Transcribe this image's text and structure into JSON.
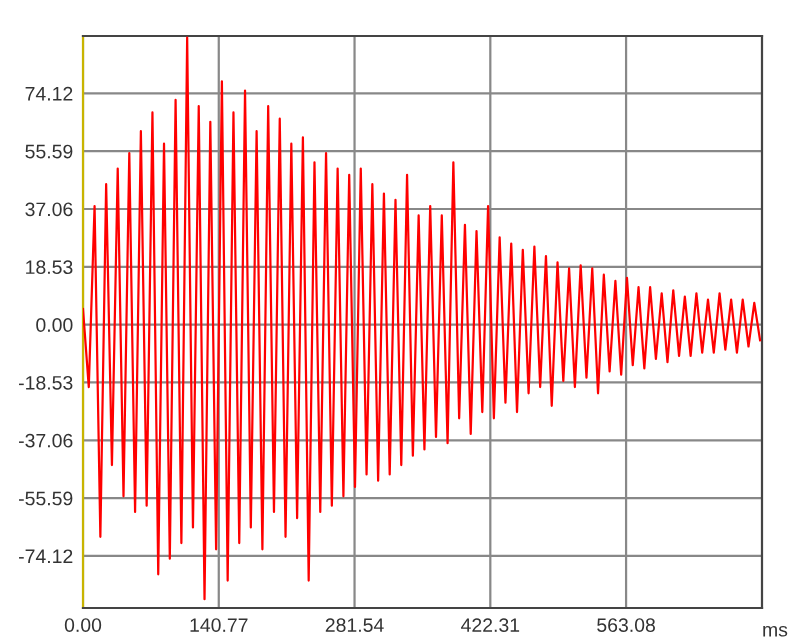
{
  "chart_data": {
    "type": "line",
    "xlabel": "ms",
    "x": [
      0,
      6,
      12,
      18,
      24,
      30,
      36,
      42,
      48,
      54,
      60,
      66,
      72,
      78,
      84,
      90,
      96,
      102,
      108,
      114,
      120,
      126,
      132,
      138,
      144,
      150,
      156,
      162,
      168,
      174,
      180,
      186,
      192,
      198,
      204,
      210,
      216,
      222,
      228,
      234,
      240,
      246,
      252,
      258,
      264,
      270,
      276,
      282,
      288,
      294,
      300,
      306,
      312,
      318,
      324,
      330,
      336,
      342,
      348,
      354,
      360,
      366,
      372,
      378,
      384,
      390,
      396,
      402,
      408,
      414,
      420,
      426,
      432,
      438,
      444,
      450,
      456,
      462,
      468,
      474,
      480,
      486,
      492,
      498,
      504,
      510,
      516,
      522,
      528,
      534,
      540,
      546,
      552,
      558,
      564,
      570,
      576,
      582,
      588,
      594,
      600,
      606,
      612,
      618,
      624,
      630,
      636,
      642,
      648,
      654,
      660,
      666,
      672,
      678,
      684,
      690,
      696,
      702
    ],
    "series": [
      {
        "color": "#ff0000",
        "values": [
          5,
          -20,
          38,
          -68,
          45,
          -45,
          50,
          -55,
          55,
          -60,
          62,
          -58,
          68,
          -80,
          58,
          -75,
          72,
          -70,
          92,
          -65,
          70,
          -88,
          65,
          -72,
          78,
          -82,
          68,
          -70,
          75,
          -65,
          62,
          -72,
          70,
          -60,
          66,
          -68,
          58,
          -62,
          60,
          -82,
          52,
          -60,
          55,
          -58,
          50,
          -55,
          48,
          -52,
          50,
          -48,
          45,
          -50,
          42,
          -48,
          40,
          -45,
          48,
          -42,
          35,
          -40,
          38,
          -36,
          35,
          -38,
          52,
          -30,
          32,
          -35,
          30,
          -28,
          38,
          -30,
          28,
          -25,
          26,
          -28,
          24,
          -22,
          25,
          -20,
          22,
          -26,
          20,
          -18,
          18,
          -20,
          19,
          -17,
          18,
          -22,
          16,
          -15,
          14,
          -16,
          15,
          -13,
          12,
          -14,
          12,
          -11,
          10,
          -12,
          11,
          -10,
          9,
          -10,
          10,
          -9,
          8,
          -9,
          10,
          -8,
          8,
          -9,
          8,
          -7,
          7,
          -5
        ]
      }
    ],
    "xlim": [
      0,
      704
    ],
    "ylim": [
      -90.8,
      92.5
    ],
    "xticks": [
      {
        "value": 0,
        "label": "0.00"
      },
      {
        "value": 140.77,
        "label": "140.77"
      },
      {
        "value": 281.54,
        "label": "281.54"
      },
      {
        "value": 422.31,
        "label": "422.31"
      },
      {
        "value": 563.08,
        "label": "563.08"
      }
    ],
    "yticks": [
      {
        "value": -74.12,
        "label": "-74.12"
      },
      {
        "value": -55.59,
        "label": "-55.59"
      },
      {
        "value": -37.06,
        "label": "-37.06"
      },
      {
        "value": -18.53,
        "label": "-18.53"
      },
      {
        "value": 0,
        "label": "0.00"
      },
      {
        "value": 18.53,
        "label": "18.53"
      },
      {
        "value": 37.06,
        "label": "37.06"
      },
      {
        "value": 55.59,
        "label": "55.59"
      },
      {
        "value": 74.12,
        "label": "74.12"
      }
    ],
    "grid": true,
    "marker": "none",
    "line_style": "solid"
  }
}
